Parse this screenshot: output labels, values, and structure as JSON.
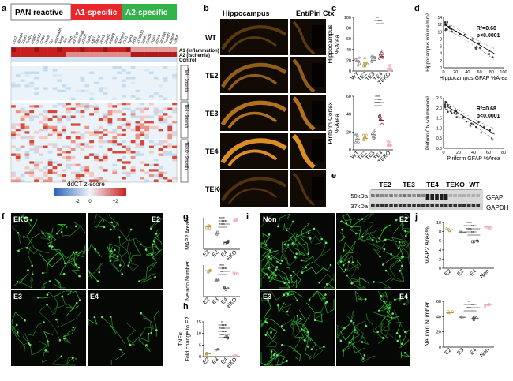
{
  "panel_letters": {
    "a": "a",
    "b": "b",
    "c": "c",
    "d": "d",
    "e": "e",
    "f": "f",
    "g": "g",
    "h": "h",
    "i": "i",
    "j": "j"
  },
  "panel_a": {
    "groups": [
      {
        "label": "PAN reactive",
        "color": "#ffffff"
      },
      {
        "label": "A1-specific",
        "color": "#e8262b"
      },
      {
        "label": "A2-specific",
        "color": "#33b44a"
      }
    ],
    "gene_labels": [
      "Lcn2",
      "Steap4",
      "S1pr3",
      "Timp1",
      "Hspb1",
      "Cxcl10",
      "Cd44",
      "Osmr",
      "Cp",
      "Serpina3n",
      "Aspg",
      "Vim",
      "Gfap",
      "H2-T23",
      "Serping1",
      "H2-D1",
      "Ggta1",
      "Iigp1",
      "Gbp2",
      "Fbln5",
      "Fkbp5",
      "Psmb8",
      "Srgn",
      "Amigo2",
      "Clcf1",
      "Tgm1",
      "Ptx3",
      "S100a10",
      "Sphk1",
      "Cd109",
      "Ptgs2",
      "Emp1",
      "Slc10a6",
      "Tm4sf1",
      "B3gnt5",
      "Cd14"
    ],
    "row_labels": {
      "a1": "A1 (Inflammation)",
      "a2": "A2 (Ischemia)",
      "control": "Control"
    },
    "side_labels": [
      "TE4 - 3month",
      "TE4 - 9month",
      "TEKO - 9month"
    ],
    "legend_title": "ddCT z-score",
    "legend_ticks": [
      "-2",
      "0",
      "+2"
    ],
    "colors": {
      "low": "#2a62b0",
      "mid": "#eef5fb",
      "high": "#c81e1e"
    }
  },
  "panel_b": {
    "headers": [
      "Hippocampus",
      "Ent/Piri Ctx"
    ],
    "rows": [
      "WT",
      "TE2",
      "TE3",
      "TE4",
      "TEKO"
    ]
  },
  "panel_c": {
    "chart_data": [
      {
        "type": "scatter",
        "ylabel": "Hippocampus %Area",
        "ylim": [
          0,
          100
        ],
        "yticks": [
          "0",
          "20",
          "40",
          "60",
          "80",
          "100"
        ],
        "categories": [
          "WT",
          "TE2",
          "TE3",
          "TE4",
          "TEKO"
        ],
        "means": [
          18,
          15,
          20,
          31,
          5
        ],
        "colors": [
          "#8a8a8a",
          "#b39b3c",
          "#7a7a7a",
          "#7b1f2b",
          "#f1a6b6"
        ],
        "sig": [
          "**",
          "***"
        ]
      },
      {
        "type": "scatter",
        "ylabel": "Piriform Cortex %Area",
        "ylim": [
          0,
          60
        ],
        "yticks": [
          "0",
          "20",
          "40",
          "60"
        ],
        "categories": [
          "WT",
          "TE2",
          "TE3",
          "TE4",
          "TEKO"
        ],
        "means": [
          12,
          13,
          17,
          33,
          5
        ],
        "colors": [
          "#8a8a8a",
          "#b39b3c",
          "#7a7a7a",
          "#7b1f2b",
          "#f1a6b6"
        ],
        "sig": [
          "***",
          "**",
          "****"
        ]
      }
    ]
  },
  "panel_d": {
    "chart_data": [
      {
        "type": "scatter",
        "xlabel": "Hippocampus GFAP %Area",
        "ylabel": "Hippocampus volume/mm³",
        "xlim": [
          0,
          100
        ],
        "ylim": [
          0,
          14
        ],
        "xticks": [
          "0",
          "20",
          "40",
          "60",
          "80",
          "100"
        ],
        "yticks": [
          "0",
          "2",
          "4",
          "6",
          "8",
          "10",
          "12",
          "14"
        ],
        "r2": "R²=0.66",
        "p": "p<0.0001"
      },
      {
        "type": "scatter",
        "xlabel": "Piriform GFAP %Area",
        "ylabel": "Piriform Ctx volume/mm³",
        "xlim": [
          0,
          80
        ],
        "ylim": [
          0,
          2.5
        ],
        "xticks": [
          "0",
          "20",
          "40",
          "60",
          "80"
        ],
        "yticks": [
          "0.0",
          "0.5",
          "1.0",
          "1.5",
          "2.0",
          "2.5"
        ],
        "r2": "R²=0.68",
        "p": "p<0.0001"
      }
    ]
  },
  "panel_e": {
    "lanes": [
      "TE2",
      "TE3",
      "TE4",
      "TEKO",
      "WT"
    ],
    "mw": [
      "50kDa",
      "37kDa"
    ],
    "bands": [
      "GFAP",
      "GAPDH"
    ]
  },
  "panel_f": {
    "labels": [
      "EKO",
      "E2",
      "E3",
      "E4"
    ]
  },
  "panel_g": {
    "chart_data": [
      {
        "type": "scatter",
        "ylabel": "MAP2 Area%",
        "categories": [
          "E2",
          "E3",
          "E4",
          "EKO"
        ],
        "sig": [
          "****",
          "****",
          "****"
        ]
      },
      {
        "type": "scatter",
        "ylabel": "Neuron Number",
        "categories": [
          "E2",
          "E3",
          "E4",
          "EKO"
        ],
        "sig": [
          "***",
          "****",
          "**"
        ]
      }
    ]
  },
  "panel_h": {
    "chart_data": {
      "type": "scatter",
      "ylabel": "TNFα Fold change to E2",
      "ylim": [
        0,
        15
      ],
      "yticks": [
        "0",
        "5",
        "10",
        "15"
      ],
      "categories": [
        "E2",
        "E3",
        "E4",
        "EKO"
      ],
      "sig": [
        "*",
        "****",
        "****",
        "****",
        "***"
      ]
    }
  },
  "panel_i": {
    "labels": [
      "Non",
      "E2",
      "E3",
      "E4"
    ]
  },
  "panel_j": {
    "chart_data": [
      {
        "type": "scatter",
        "ylabel": "MAP2 Area%",
        "ylim": [
          0,
          10
        ],
        "yticks": [
          "0",
          "2",
          "4",
          "6",
          "8",
          "10"
        ],
        "categories": [
          "E2",
          "E3",
          "E4",
          "Non"
        ],
        "sig": [
          "****",
          "**",
          "****",
          "**"
        ]
      },
      {
        "type": "scatter",
        "ylabel": "Neuron Number",
        "ylim": [
          0,
          60
        ],
        "yticks": [
          "0",
          "20",
          "40",
          "60"
        ],
        "categories": [
          "E2",
          "E3",
          "E4",
          "Non"
        ],
        "sig": [
          "*",
          "**",
          "***"
        ]
      }
    ]
  }
}
